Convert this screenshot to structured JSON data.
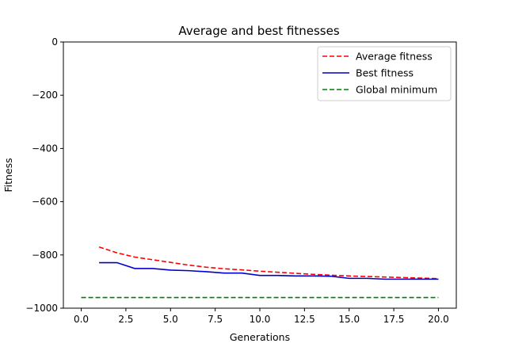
{
  "chart_data": {
    "type": "line",
    "title": "Average and best fitnesses",
    "xlabel": "Generations",
    "ylabel": "Fitness",
    "xlim": [
      -1,
      21
    ],
    "ylim": [
      -1000,
      0
    ],
    "xticks": [
      0,
      2.5,
      5,
      7.5,
      10,
      12.5,
      15,
      17.5,
      20
    ],
    "xtick_labels": [
      "0.0",
      "2.5",
      "5.0",
      "7.5",
      "10.0",
      "12.5",
      "15.0",
      "17.5",
      "20.0"
    ],
    "yticks": [
      0,
      -200,
      -400,
      -600,
      -800,
      -1000
    ],
    "ytick_labels": [
      "0",
      "−200",
      "−400",
      "−600",
      "−800",
      "−1000"
    ],
    "grid": false,
    "legend_position": "top-right",
    "series": [
      {
        "name": "Average fitness",
        "color": "#ff0000",
        "style": "dashed",
        "x": [
          1,
          2,
          3,
          4,
          5,
          6,
          7,
          8,
          9,
          10,
          11,
          12,
          13,
          14,
          15,
          16,
          17,
          18,
          19,
          20
        ],
        "y": [
          -770,
          -792,
          -808,
          -818,
          -828,
          -838,
          -846,
          -852,
          -856,
          -861,
          -865,
          -869,
          -873,
          -876,
          -879,
          -881,
          -883,
          -885,
          -887,
          -889
        ]
      },
      {
        "name": "Best fitness",
        "color": "#0000cc",
        "style": "solid",
        "x": [
          1,
          2,
          3,
          4,
          5,
          6,
          7,
          8,
          9,
          10,
          11,
          12,
          13,
          14,
          15,
          16,
          17,
          18,
          19,
          20
        ],
        "y": [
          -829,
          -829,
          -851,
          -851,
          -857,
          -859,
          -863,
          -868,
          -868,
          -877,
          -877,
          -879,
          -879,
          -880,
          -888,
          -888,
          -891,
          -891,
          -891,
          -891
        ]
      },
      {
        "name": "Global minimum",
        "color": "#008000",
        "style": "dashed",
        "x": [
          0,
          20
        ],
        "y": [
          -960,
          -960
        ]
      }
    ]
  }
}
